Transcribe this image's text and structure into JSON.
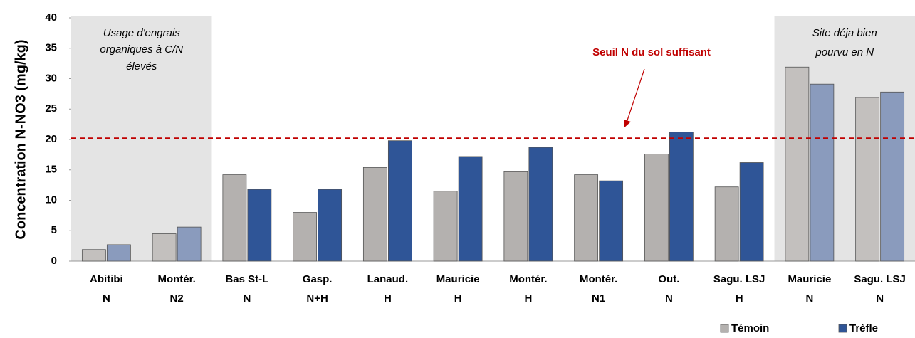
{
  "chart_data": {
    "type": "bar",
    "y_label": "Concentration N-NO3 (mg/kg)",
    "categories": [
      [
        "Abitibi",
        "N"
      ],
      [
        "Montér.",
        "N2"
      ],
      [
        "Bas St-L",
        "N"
      ],
      [
        "Gasp.",
        "N+H"
      ],
      [
        "Lanaud.",
        "H"
      ],
      [
        "Mauricie",
        "H"
      ],
      [
        "Montér.",
        "H"
      ],
      [
        "Montér.",
        "N1"
      ],
      [
        "Out.",
        "N"
      ],
      [
        "Sagu. LSJ",
        "H"
      ],
      [
        "Mauricie",
        "N"
      ],
      [
        "Sagu. LSJ",
        "N"
      ]
    ],
    "series": [
      {
        "name": "Témoin",
        "color": "#b4b1af",
        "colors": [
          "#c3c0be",
          "#c3c0be",
          "#b4b1af",
          "#b4b1af",
          "#b4b1af",
          "#b4b1af",
          "#b4b1af",
          "#b4b1af",
          "#b4b1af",
          "#b4b1af",
          "#c3c0be",
          "#c3c0be"
        ],
        "values": [
          1.9,
          4.5,
          14.2,
          8.0,
          15.4,
          11.5,
          14.7,
          14.2,
          17.6,
          12.2,
          31.9,
          26.9
        ]
      },
      {
        "name": "Trèfle",
        "color": "#2f5597",
        "colors": [
          "#8a9bbd",
          "#8a9bbd",
          "#2f5597",
          "#2f5597",
          "#2f5597",
          "#2f5597",
          "#2f5597",
          "#2f5597",
          "#2f5597",
          "#2f5597",
          "#8a9bbd",
          "#8a9bbd"
        ],
        "values": [
          2.7,
          5.6,
          11.8,
          11.8,
          19.8,
          17.2,
          18.7,
          13.2,
          21.2,
          16.2,
          29.1,
          27.8
        ]
      }
    ],
    "ylim": [
      0,
      40
    ],
    "yticks": [
      0,
      5,
      10,
      15,
      20,
      25,
      30,
      35,
      40
    ],
    "threshold": {
      "value": 20.2,
      "label": "Seuil N du sol suffisant",
      "color": "#c00000"
    },
    "annotations": [
      [
        "Usage d'engrais",
        "organiques à C/N",
        "élevés"
      ],
      [
        "Site déja bien",
        "pourvu en N"
      ]
    ],
    "legend": "bottom-right"
  }
}
